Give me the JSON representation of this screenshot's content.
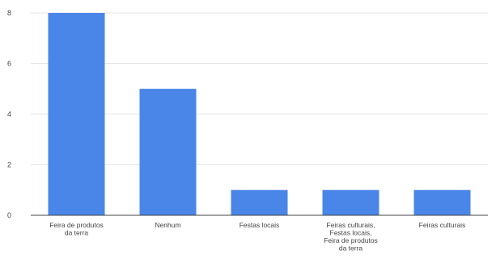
{
  "chart_data": {
    "type": "bar",
    "categories": [
      [
        "Feira de produtos",
        "da terra"
      ],
      [
        "Nenhum"
      ],
      [
        "Festas locais"
      ],
      [
        "Feiras culturais,",
        "Festas locais,",
        "Feira de produtos",
        "da terra"
      ],
      [
        "Feiras culturais"
      ]
    ],
    "values": [
      8,
      5,
      1,
      1,
      1
    ],
    "ylim": [
      0,
      8
    ],
    "yticks": [
      0,
      2,
      4,
      6,
      8
    ],
    "grid": true,
    "colors": {
      "bar": "#4a86e8",
      "grid": "#e6e6e6",
      "axis": "#444444"
    }
  }
}
